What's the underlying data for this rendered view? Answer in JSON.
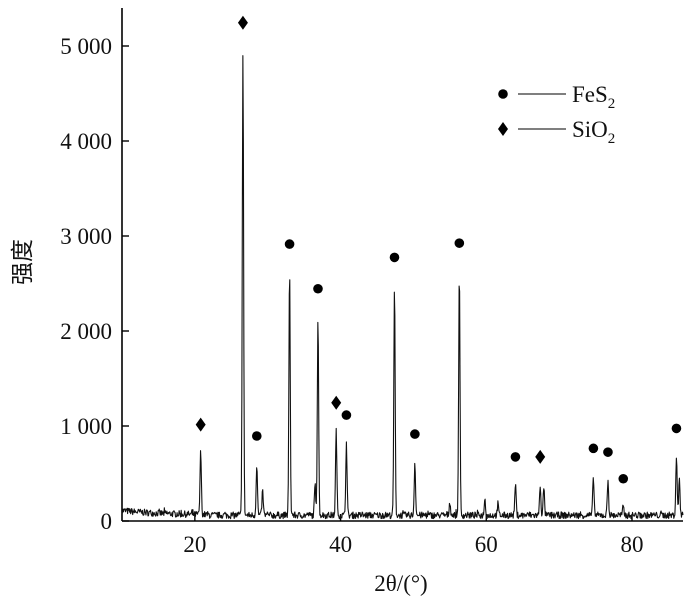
{
  "chart_data": {
    "type": "line",
    "title": "",
    "xlabel": "2θ/(°)",
    "ylabel": "强度",
    "xlim": [
      10,
      87
    ],
    "ylim": [
      0,
      5400
    ],
    "x_ticks": [
      20,
      40,
      60,
      80
    ],
    "y_ticks": [
      0,
      1000,
      2000,
      3000,
      4000,
      5000
    ],
    "y_tick_labels": [
      "0",
      "1 000",
      "2 000",
      "3 000",
      "4 000",
      "5 000"
    ],
    "grid": false,
    "legend_position": "top-right",
    "legend": [
      {
        "marker": "circle",
        "base": "FeS",
        "sub": "2"
      },
      {
        "marker": "diamond",
        "base": "SiO",
        "sub": "2"
      }
    ],
    "baseline": 60,
    "peaks": [
      {
        "x": 20.8,
        "y": 720,
        "marker": "diamond"
      },
      {
        "x": 26.6,
        "y": 4950,
        "marker": "diamond"
      },
      {
        "x": 28.5,
        "y": 600,
        "marker": "circle"
      },
      {
        "x": 33.0,
        "y": 2620,
        "marker": "circle"
      },
      {
        "x": 36.9,
        "y": 2150,
        "marker": "circle"
      },
      {
        "x": 39.4,
        "y": 950,
        "marker": "diamond"
      },
      {
        "x": 40.8,
        "y": 820,
        "marker": "circle"
      },
      {
        "x": 47.4,
        "y": 2480,
        "marker": "circle"
      },
      {
        "x": 50.2,
        "y": 620,
        "marker": "circle"
      },
      {
        "x": 56.3,
        "y": 2630,
        "marker": "circle"
      },
      {
        "x": 64.0,
        "y": 380,
        "marker": "circle"
      },
      {
        "x": 67.4,
        "y": 380,
        "marker": "diamond"
      },
      {
        "x": 74.7,
        "y": 470,
        "marker": "circle"
      },
      {
        "x": 76.7,
        "y": 430,
        "marker": "circle"
      },
      {
        "x": 78.8,
        "y": 150,
        "marker": "circle"
      },
      {
        "x": 86.1,
        "y": 680,
        "marker": "circle"
      }
    ],
    "minor_peaks": [
      {
        "x": 29.3,
        "y": 320
      },
      {
        "x": 36.5,
        "y": 380
      },
      {
        "x": 55.0,
        "y": 200
      },
      {
        "x": 59.8,
        "y": 230
      },
      {
        "x": 61.6,
        "y": 170
      },
      {
        "x": 67.9,
        "y": 350
      },
      {
        "x": 86.5,
        "y": 450
      }
    ]
  }
}
